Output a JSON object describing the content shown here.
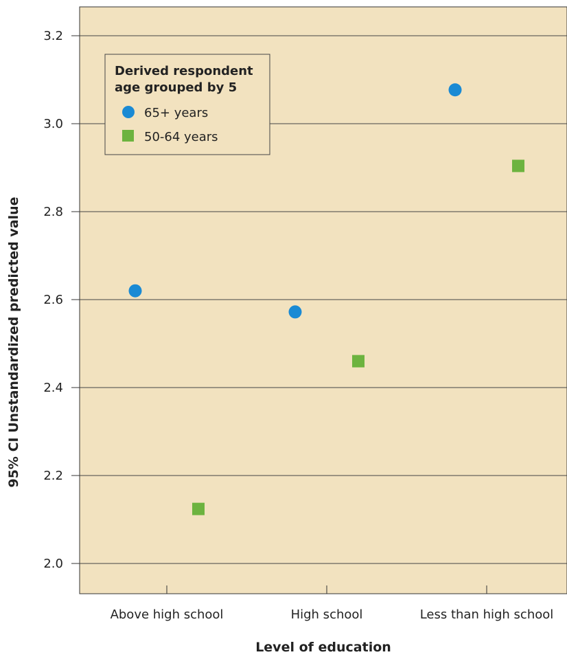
{
  "chart_data": {
    "type": "scatter",
    "xlabel": "Level of education",
    "ylabel": "95% CI Unstandardized predicted value",
    "categories": [
      "Above high school",
      "High school",
      "Less than high school"
    ],
    "ylim": [
      1.95,
      3.26
    ],
    "yticks": [
      "2.0",
      "2.2",
      "2.4",
      "2.6",
      "2.8",
      "3.0",
      "3.2"
    ],
    "grid": true,
    "legend": {
      "title_lines": [
        "Derived respondent",
        "age grouped by 5"
      ],
      "position": "top-left"
    },
    "series": [
      {
        "name": "65+ years",
        "marker": "circle",
        "color": "#1a8ad4",
        "values": [
          2.62,
          2.572,
          3.077
        ]
      },
      {
        "name": "50-64 years",
        "marker": "square",
        "color": "#6db33f",
        "values": [
          2.124,
          2.46,
          2.904
        ]
      }
    ],
    "colors": {
      "plot_background": "#f2e2bf",
      "gridline": "#444444"
    }
  }
}
